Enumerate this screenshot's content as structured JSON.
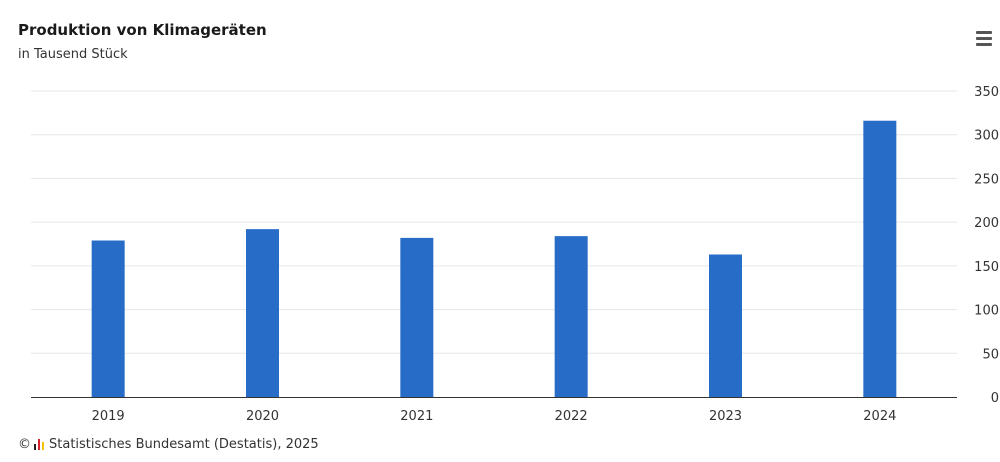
{
  "chart_data": {
    "type": "bar",
    "title": "Produktion von Klimageräten",
    "subtitle": "in Tausend Stück",
    "categories": [
      "2019",
      "2020",
      "2021",
      "2022",
      "2023",
      "2024"
    ],
    "series": [
      {
        "values": [
          179,
          192,
          182,
          184,
          163,
          316
        ]
      }
    ],
    "ylim": [
      0,
      350
    ],
    "yticks": [
      0,
      50,
      100,
      150,
      200,
      250,
      300,
      350
    ],
    "y_axis_side": "right",
    "grid": true,
    "legend": "none",
    "bar_color": "#276cc6"
  },
  "credits": {
    "copyright": "©",
    "text": "Statistisches Bundesamt (Destatis), 2025"
  },
  "menu_icon": "hamburger-menu-icon",
  "colors": {
    "bar": "#276cc6",
    "grid": "#e6e6e6",
    "axis": "#333333",
    "logo_red": "#d9232e",
    "logo_yellow": "#f5c400",
    "logo_black": "#222222"
  }
}
